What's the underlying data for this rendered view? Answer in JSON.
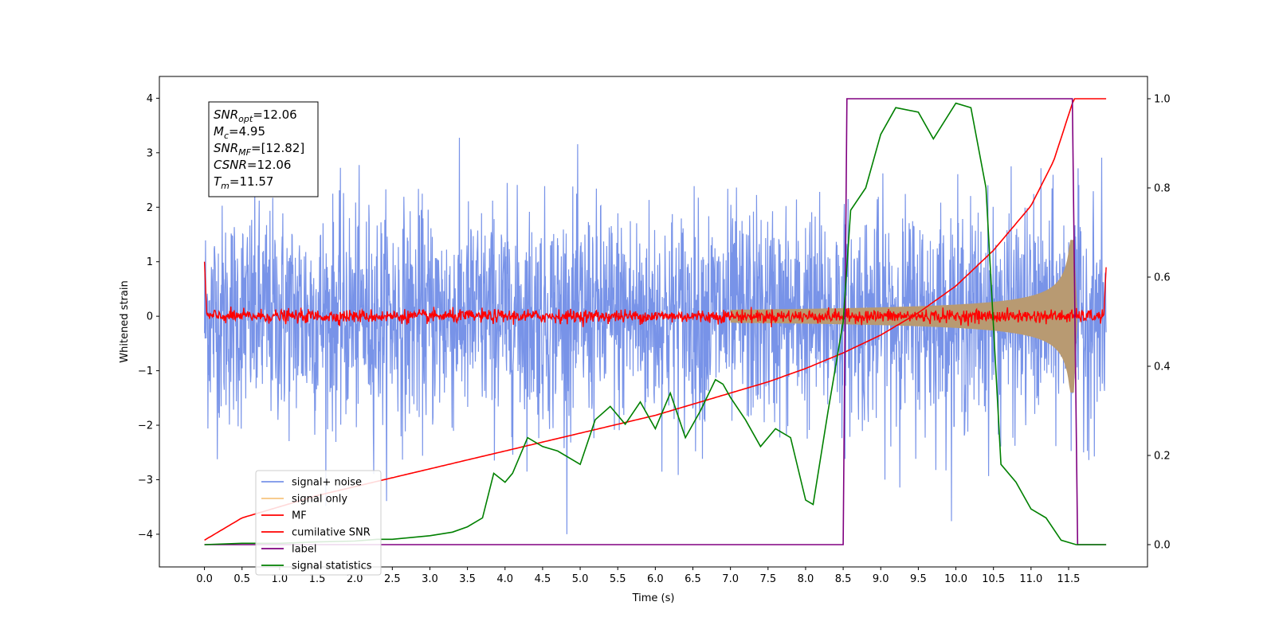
{
  "chart_data": {
    "type": "line",
    "title": "",
    "xlabel": "Time (s)",
    "ylabel": "Whitened strain",
    "y2label": "",
    "xlim": [
      -0.6,
      12.55
    ],
    "ylim": [
      -4.6,
      4.4
    ],
    "y2lim": [
      -0.05,
      1.05
    ],
    "grid": false,
    "legend_position": "lower-left",
    "x_ticks": [
      "0.0",
      "0.5",
      "1.0",
      "1.5",
      "2.0",
      "2.5",
      "3.0",
      "3.5",
      "4.0",
      "4.5",
      "5.0",
      "5.5",
      "6.0",
      "6.5",
      "7.0",
      "7.5",
      "8.0",
      "8.5",
      "9.0",
      "9.5",
      "10.0",
      "10.5",
      "11.0",
      "11.5"
    ],
    "y_ticks": [
      "4",
      "3",
      "2",
      "1",
      "0",
      "−1",
      "−2",
      "−3",
      "−4"
    ],
    "y2_ticks": [
      "1.0",
      "0.8",
      "0.6",
      "0.4",
      "0.2",
      "0.0"
    ],
    "annotation": {
      "lines": [
        {
          "sym": "SNR",
          "sub": "opt",
          "text": "=12.06"
        },
        {
          "sym": "M",
          "sub": "c",
          "text": "=4.95"
        },
        {
          "sym": "SNR",
          "sub": "MF",
          "text": "=[12.82]"
        },
        {
          "sym": "CSNR",
          "sub": "",
          "text": "=12.06"
        },
        {
          "sym": "T",
          "sub": "m",
          "text": "=11.57"
        }
      ]
    },
    "series": [
      {
        "name": "signal+ noise",
        "color": "#7893e8",
        "axis": "left",
        "style": "noise",
        "amplitude": 1.0,
        "x_range": [
          0,
          12
        ]
      },
      {
        "name": "signal only",
        "color": "#f7c57f",
        "axis": "left",
        "style": "chirp",
        "peak_amplitude": 1.4,
        "merger_time": 11.57
      },
      {
        "name": "MF",
        "color": "#ff0000",
        "axis": "left",
        "style": "small-noise",
        "amplitude": 0.06
      },
      {
        "name": "cumilative SNR",
        "color": "#ff0000",
        "axis": "right",
        "x": [
          0,
          0.5,
          1,
          1.5,
          2,
          2.5,
          3,
          3.5,
          4,
          4.5,
          5,
          5.5,
          6,
          6.5,
          7,
          7.5,
          8,
          8.5,
          9,
          9.5,
          10,
          10.5,
          11,
          11.3,
          11.57,
          12
        ],
        "y": [
          0.01,
          0.06,
          0.085,
          0.11,
          0.13,
          0.15,
          0.17,
          0.19,
          0.21,
          0.23,
          0.25,
          0.27,
          0.29,
          0.315,
          0.34,
          0.365,
          0.395,
          0.43,
          0.47,
          0.52,
          0.58,
          0.66,
          0.76,
          0.86,
          1.0,
          1.0
        ]
      },
      {
        "name": "label",
        "color": "#800080",
        "axis": "right",
        "x": [
          0,
          8.5,
          8.55,
          11.55,
          11.62,
          12
        ],
        "y": [
          0,
          0,
          1,
          1,
          0,
          0
        ]
      },
      {
        "name": "signal statistics",
        "color": "#008000",
        "axis": "right",
        "x": [
          0,
          0.5,
          1,
          1.5,
          2,
          2.3,
          2.5,
          3,
          3.3,
          3.5,
          3.7,
          3.85,
          4.0,
          4.1,
          4.3,
          4.5,
          4.7,
          5.0,
          5.2,
          5.4,
          5.6,
          5.8,
          6.0,
          6.2,
          6.4,
          6.6,
          6.8,
          6.9,
          7.0,
          7.2,
          7.4,
          7.6,
          7.8,
          8.0,
          8.1,
          8.3,
          8.5,
          8.6,
          8.8,
          9.0,
          9.2,
          9.5,
          9.7,
          10.0,
          10.2,
          10.4,
          10.6,
          10.8,
          11.0,
          11.2,
          11.4,
          11.6,
          12.0
        ],
        "y": [
          0.0,
          0.003,
          0.003,
          0.006,
          0.008,
          0.012,
          0.012,
          0.02,
          0.028,
          0.04,
          0.06,
          0.16,
          0.14,
          0.16,
          0.24,
          0.22,
          0.21,
          0.18,
          0.28,
          0.31,
          0.27,
          0.32,
          0.26,
          0.34,
          0.24,
          0.3,
          0.37,
          0.36,
          0.33,
          0.28,
          0.22,
          0.26,
          0.24,
          0.1,
          0.09,
          0.3,
          0.5,
          0.75,
          0.8,
          0.92,
          0.98,
          0.97,
          0.91,
          0.99,
          0.98,
          0.8,
          0.18,
          0.14,
          0.08,
          0.06,
          0.01,
          0.0,
          0.0
        ]
      }
    ]
  }
}
